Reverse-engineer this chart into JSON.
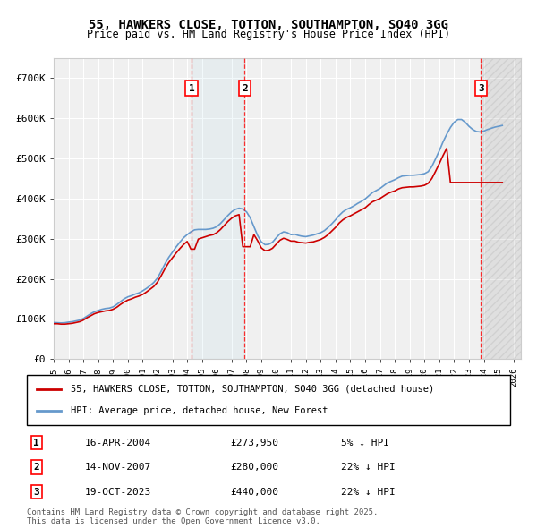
{
  "title": "55, HAWKERS CLOSE, TOTTON, SOUTHAMPTON, SO40 3GG",
  "subtitle": "Price paid vs. HM Land Registry's House Price Index (HPI)",
  "ylabel": "",
  "ylim": [
    0,
    750000
  ],
  "yticks": [
    0,
    100000,
    200000,
    300000,
    400000,
    500000,
    600000,
    700000
  ],
  "ytick_labels": [
    "£0",
    "£100K",
    "£200K",
    "£300K",
    "£400K",
    "£500K",
    "£600K",
    "£700K"
  ],
  "xlim_start": 1995.0,
  "xlim_end": 2026.5,
  "background_color": "#ffffff",
  "plot_background": "#f0f0f0",
  "grid_color": "#ffffff",
  "hpi_color": "#6699cc",
  "price_color": "#cc0000",
  "transactions": [
    {
      "num": 1,
      "date": "16-APR-2004",
      "price": 273950,
      "pct": "5%",
      "year": 2004.29
    },
    {
      "num": 2,
      "date": "14-NOV-2007",
      "price": 280000,
      "pct": "22%",
      "year": 2007.87
    },
    {
      "num": 3,
      "date": "19-OCT-2023",
      "price": 440000,
      "pct": "22%",
      "year": 2023.8
    }
  ],
  "legend_items": [
    {
      "label": "55, HAWKERS CLOSE, TOTTON, SOUTHAMPTON, SO40 3GG (detached house)",
      "color": "#cc0000"
    },
    {
      "label": "HPI: Average price, detached house, New Forest",
      "color": "#6699cc"
    }
  ],
  "footer": "Contains HM Land Registry data © Crown copyright and database right 2025.\nThis data is licensed under the Open Government Licence v3.0.",
  "hpi_data": {
    "years": [
      1995.0,
      1995.25,
      1995.5,
      1995.75,
      1996.0,
      1996.25,
      1996.5,
      1996.75,
      1997.0,
      1997.25,
      1997.5,
      1997.75,
      1998.0,
      1998.25,
      1998.5,
      1998.75,
      1999.0,
      1999.25,
      1999.5,
      1999.75,
      2000.0,
      2000.25,
      2000.5,
      2000.75,
      2001.0,
      2001.25,
      2001.5,
      2001.75,
      2002.0,
      2002.25,
      2002.5,
      2002.75,
      2003.0,
      2003.25,
      2003.5,
      2003.75,
      2004.0,
      2004.25,
      2004.5,
      2004.75,
      2005.0,
      2005.25,
      2005.5,
      2005.75,
      2006.0,
      2006.25,
      2006.5,
      2006.75,
      2007.0,
      2007.25,
      2007.5,
      2007.75,
      2008.0,
      2008.25,
      2008.5,
      2008.75,
      2009.0,
      2009.25,
      2009.5,
      2009.75,
      2010.0,
      2010.25,
      2010.5,
      2010.75,
      2011.0,
      2011.25,
      2011.5,
      2011.75,
      2012.0,
      2012.25,
      2012.5,
      2012.75,
      2013.0,
      2013.25,
      2013.5,
      2013.75,
      2014.0,
      2014.25,
      2014.5,
      2014.75,
      2015.0,
      2015.25,
      2015.5,
      2015.75,
      2016.0,
      2016.25,
      2016.5,
      2016.75,
      2017.0,
      2017.25,
      2017.5,
      2017.75,
      2018.0,
      2018.25,
      2018.5,
      2018.75,
      2019.0,
      2019.25,
      2019.5,
      2019.75,
      2020.0,
      2020.25,
      2020.5,
      2020.75,
      2021.0,
      2021.25,
      2021.5,
      2021.75,
      2022.0,
      2022.25,
      2022.5,
      2022.75,
      2023.0,
      2023.25,
      2023.5,
      2023.75,
      2024.0,
      2024.25,
      2024.5,
      2024.75,
      2025.0,
      2025.25
    ],
    "values": [
      91000,
      90500,
      90000,
      90500,
      92000,
      93000,
      95000,
      97000,
      101000,
      107000,
      113000,
      118000,
      121000,
      124000,
      126000,
      127000,
      130000,
      136000,
      143000,
      150000,
      155000,
      158000,
      162000,
      165000,
      170000,
      176000,
      183000,
      191000,
      202000,
      219000,
      237000,
      253000,
      266000,
      279000,
      291000,
      302000,
      310000,
      317000,
      322000,
      323000,
      323000,
      323000,
      324000,
      326000,
      330000,
      338000,
      348000,
      358000,
      367000,
      373000,
      376000,
      374000,
      367000,
      352000,
      330000,
      308000,
      292000,
      285000,
      286000,
      291000,
      302000,
      312000,
      317000,
      315000,
      310000,
      311000,
      308000,
      306000,
      305000,
      307000,
      309000,
      312000,
      315000,
      320000,
      328000,
      337000,
      347000,
      358000,
      367000,
      373000,
      377000,
      382000,
      388000,
      393000,
      399000,
      407000,
      415000,
      420000,
      425000,
      432000,
      439000,
      443000,
      447000,
      452000,
      456000,
      457000,
      458000,
      458000,
      459000,
      460000,
      462000,
      467000,
      480000,
      499000,
      519000,
      541000,
      560000,
      577000,
      590000,
      597000,
      597000,
      590000,
      580000,
      572000,
      567000,
      566000,
      568000,
      572000,
      575000,
      578000,
      580000,
      582000
    ]
  },
  "price_data": {
    "years": [
      1995.0,
      1995.25,
      1995.5,
      1995.75,
      1996.0,
      1996.25,
      1996.5,
      1996.75,
      1997.0,
      1997.25,
      1997.5,
      1997.75,
      1998.0,
      1998.25,
      1998.5,
      1998.75,
      1999.0,
      1999.25,
      1999.5,
      1999.75,
      2000.0,
      2000.25,
      2000.5,
      2000.75,
      2001.0,
      2001.25,
      2001.5,
      2001.75,
      2002.0,
      2002.25,
      2002.5,
      2002.75,
      2003.0,
      2003.25,
      2003.5,
      2003.75,
      2004.0,
      2004.25,
      2004.5,
      2004.75,
      2005.0,
      2005.25,
      2005.5,
      2005.75,
      2006.0,
      2006.25,
      2006.5,
      2006.75,
      2007.0,
      2007.25,
      2007.5,
      2007.75,
      2008.0,
      2008.25,
      2008.5,
      2008.75,
      2009.0,
      2009.25,
      2009.5,
      2009.75,
      2010.0,
      2010.25,
      2010.5,
      2010.75,
      2011.0,
      2011.25,
      2011.5,
      2011.75,
      2012.0,
      2012.25,
      2012.5,
      2012.75,
      2013.0,
      2013.25,
      2013.5,
      2013.75,
      2014.0,
      2014.25,
      2014.5,
      2014.75,
      2015.0,
      2015.25,
      2015.5,
      2015.75,
      2016.0,
      2016.25,
      2016.5,
      2016.75,
      2017.0,
      2017.25,
      2017.5,
      2017.75,
      2018.0,
      2018.25,
      2018.5,
      2018.75,
      2019.0,
      2019.25,
      2019.5,
      2019.75,
      2020.0,
      2020.25,
      2020.5,
      2020.75,
      2021.0,
      2021.25,
      2021.5,
      2021.75,
      2022.0,
      2022.25,
      2022.5,
      2022.75,
      2023.0,
      2023.25,
      2023.5,
      2023.75,
      2024.0,
      2024.25,
      2024.5,
      2024.75,
      2025.0,
      2025.25
    ],
    "values": [
      88000,
      88000,
      87000,
      87000,
      88000,
      89000,
      91000,
      93000,
      97000,
      103000,
      108000,
      113000,
      116000,
      118000,
      120000,
      121000,
      124000,
      129000,
      136000,
      142000,
      147000,
      150000,
      154000,
      157000,
      161000,
      167000,
      174000,
      181000,
      192000,
      208000,
      225000,
      240000,
      252000,
      264000,
      275000,
      285000,
      293000,
      273950,
      273950,
      299000,
      302000,
      305000,
      308000,
      310000,
      315000,
      323000,
      333000,
      343000,
      351000,
      357000,
      360000,
      280000,
      280000,
      280000,
      310000,
      295000,
      277000,
      270000,
      271000,
      276000,
      286000,
      296000,
      301000,
      298000,
      294000,
      294000,
      291000,
      290000,
      289000,
      291000,
      292000,
      295000,
      298000,
      303000,
      310000,
      319000,
      328000,
      339000,
      347000,
      353000,
      357000,
      362000,
      367000,
      372000,
      377000,
      385000,
      392000,
      396000,
      400000,
      406000,
      412000,
      416000,
      419000,
      424000,
      427000,
      428000,
      429000,
      429000,
      430000,
      431000,
      433000,
      438000,
      450000,
      468000,
      487000,
      507000,
      525000,
      440000,
      440000,
      440000,
      440000,
      440000,
      440000,
      440000,
      440000,
      440000,
      440000,
      440000,
      440000,
      440000,
      440000,
      440000
    ]
  }
}
